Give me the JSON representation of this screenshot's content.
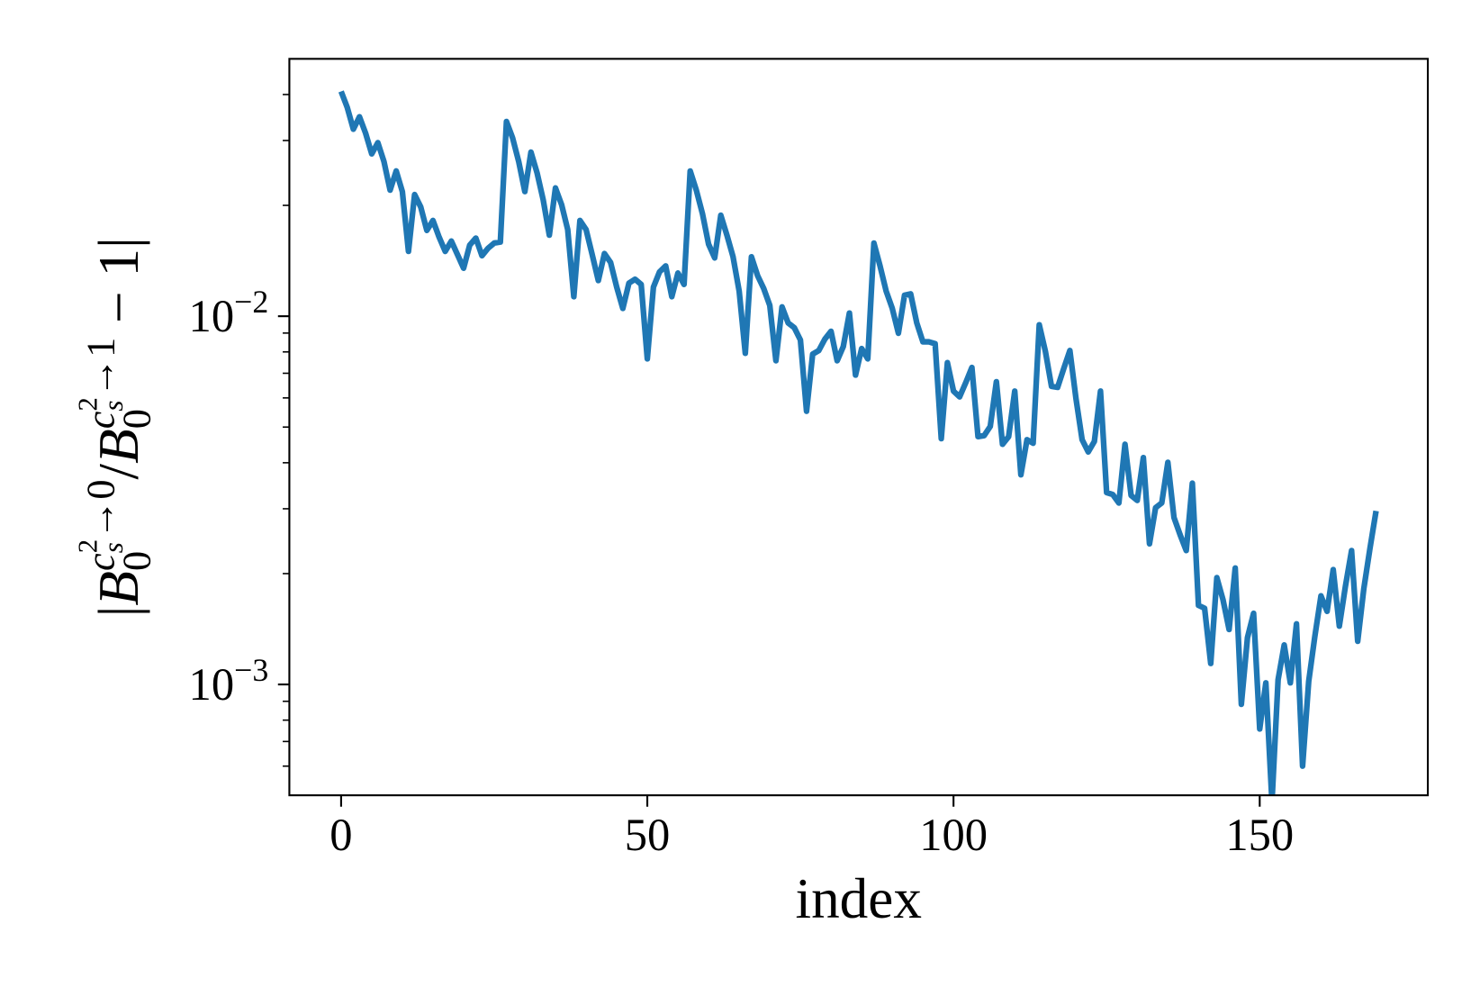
{
  "chart_data": {
    "type": "line",
    "xlabel": "index",
    "ylabel": "|B_0^{c_s^2→0}/B_0^{c_s^2→1} − 1|",
    "log_y": true,
    "grid": false,
    "xlim": [
      -8.45,
      177.45
    ],
    "xticks": [
      0,
      50,
      100,
      150
    ],
    "ylim": [
      0.0005,
      0.05
    ],
    "yticks": [
      {
        "value": 0.001,
        "label": "10−3"
      },
      {
        "value": 0.01,
        "label": "10−2"
      }
    ],
    "yminorticks": [
      0.0006,
      0.0007,
      0.0008,
      0.0009,
      0.002,
      0.003,
      0.004,
      0.005,
      0.006,
      0.007,
      0.008,
      0.009,
      0.02,
      0.03,
      0.04
    ],
    "x": [
      0,
      1,
      2,
      3,
      4,
      5,
      6,
      7,
      8,
      9,
      10,
      11,
      12,
      13,
      14,
      15,
      16,
      17,
      18,
      19,
      20,
      21,
      22,
      23,
      24,
      25,
      26,
      27,
      28,
      29,
      30,
      31,
      32,
      33,
      34,
      35,
      36,
      37,
      38,
      39,
      40,
      41,
      42,
      43,
      44,
      45,
      46,
      47,
      48,
      49,
      50,
      51,
      52,
      53,
      54,
      55,
      56,
      57,
      58,
      59,
      60,
      61,
      62,
      63,
      64,
      65,
      66,
      67,
      68,
      69,
      70,
      71,
      72,
      73,
      74,
      75,
      76,
      77,
      78,
      79,
      80,
      81,
      82,
      83,
      84,
      85,
      86,
      87,
      88,
      89,
      90,
      91,
      92,
      93,
      94,
      95,
      96,
      97,
      98,
      99,
      100,
      101,
      102,
      103,
      104,
      105,
      106,
      107,
      108,
      109,
      110,
      111,
      112,
      113,
      114,
      115,
      116,
      117,
      118,
      119,
      120,
      121,
      122,
      123,
      124,
      125,
      126,
      127,
      128,
      129,
      130,
      131,
      132,
      133,
      134,
      135,
      136,
      137,
      138,
      139,
      140,
      141,
      142,
      143,
      144,
      145,
      146,
      147,
      148,
      149,
      150,
      151,
      152,
      153,
      154,
      155,
      156,
      157,
      158,
      159,
      160,
      161,
      162,
      163,
      164,
      165,
      166,
      167,
      168,
      169
    ],
    "series": [
      {
        "color": "#1f77b4",
        "values": [
          0.0408,
          0.0369,
          0.0322,
          0.0348,
          0.0314,
          0.0276,
          0.0296,
          0.0263,
          0.022,
          0.0248,
          0.0218,
          0.015,
          0.0214,
          0.0198,
          0.0171,
          0.0182,
          0.0164,
          0.015,
          0.016,
          0.0147,
          0.0135,
          0.0156,
          0.0163,
          0.0146,
          0.0153,
          0.0158,
          0.0159,
          0.0338,
          0.0305,
          0.0263,
          0.0218,
          0.0279,
          0.0245,
          0.0207,
          0.0166,
          0.0223,
          0.0201,
          0.0172,
          0.0113,
          0.0182,
          0.0172,
          0.0147,
          0.0125,
          0.0148,
          0.014,
          0.012,
          0.0105,
          0.0123,
          0.0126,
          0.0122,
          0.00766,
          0.012,
          0.0132,
          0.0137,
          0.0113,
          0.0131,
          0.0122,
          0.0248,
          0.022,
          0.019,
          0.0157,
          0.0144,
          0.0188,
          0.0166,
          0.0145,
          0.0117,
          0.00793,
          0.0145,
          0.0129,
          0.0119,
          0.0107,
          0.00757,
          0.0106,
          0.00959,
          0.00931,
          0.00862,
          0.00552,
          0.00789,
          0.00807,
          0.00867,
          0.0091,
          0.00757,
          0.00827,
          0.0102,
          0.00692,
          0.00817,
          0.00766,
          0.0158,
          0.0137,
          0.0117,
          0.0105,
          0.00899,
          0.0114,
          0.0115,
          0.00959,
          0.00852,
          0.00852,
          0.00842,
          0.00465,
          0.00748,
          0.00626,
          0.00604,
          0.0066,
          0.00726,
          0.00471,
          0.00474,
          0.00502,
          0.00664,
          0.00449,
          0.00471,
          0.00626,
          0.00371,
          0.00462,
          0.00452,
          0.00948,
          0.00803,
          0.00645,
          0.00641,
          0.00721,
          0.00807,
          0.00597,
          0.00462,
          0.00428,
          0.00457,
          0.00626,
          0.00332,
          0.00328,
          0.00311,
          0.00449,
          0.00326,
          0.00316,
          0.00413,
          0.00241,
          0.00302,
          0.00311,
          0.00401,
          0.00284,
          0.00255,
          0.00231,
          0.00352,
          0.00164,
          0.00161,
          0.00114,
          0.00195,
          0.0017,
          0.00141,
          0.00207,
          0.000883,
          0.00134,
          0.00156,
          0.000757,
          0.00101,
          0.000479,
          0.00103,
          0.00128,
          0.00101,
          0.00146,
          0.0006,
          0.00102,
          0.00135,
          0.00174,
          0.00158,
          0.00205,
          0.00144,
          0.00185,
          0.00231,
          0.00131,
          0.00182,
          0.00234,
          0.00296
        ]
      }
    ]
  }
}
